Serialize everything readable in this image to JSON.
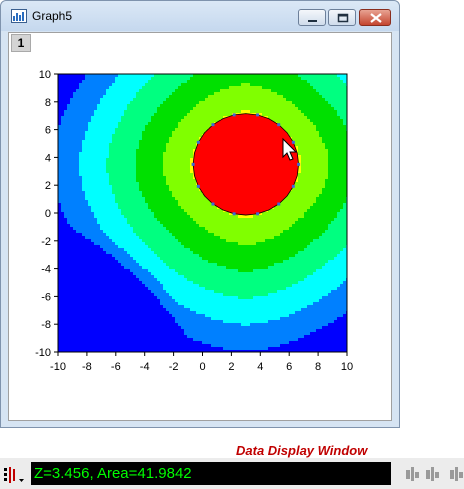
{
  "window": {
    "title": "Graph5",
    "layer_label": "1"
  },
  "chart_data": {
    "type": "contour",
    "xlim": [
      -10,
      10
    ],
    "ylim": [
      -10,
      10
    ],
    "x_ticks": [
      "-10",
      "-8",
      "-6",
      "-4",
      "-2",
      "0",
      "2",
      "4",
      "6",
      "8",
      "10"
    ],
    "y_ticks": [
      "10",
      "8",
      "6",
      "4",
      "2",
      "0",
      "-2",
      "-4",
      "-6",
      "-8",
      "-10"
    ],
    "peak_center": [
      3,
      3.5
    ],
    "min_corner": [
      -10,
      -10
    ],
    "level_colors": [
      "#0000ff",
      "#0080ff",
      "#00ffff",
      "#00ff80",
      "#00e000",
      "#80ff00",
      "#ffff00",
      "#ff8000",
      "#ff0000"
    ],
    "selected_region_center": [
      3,
      3.5
    ],
    "selected_region_radius": 3.65
  },
  "data_display": {
    "title": "Data Display Window",
    "readout": "Z=3.456, Area=41.9842"
  }
}
